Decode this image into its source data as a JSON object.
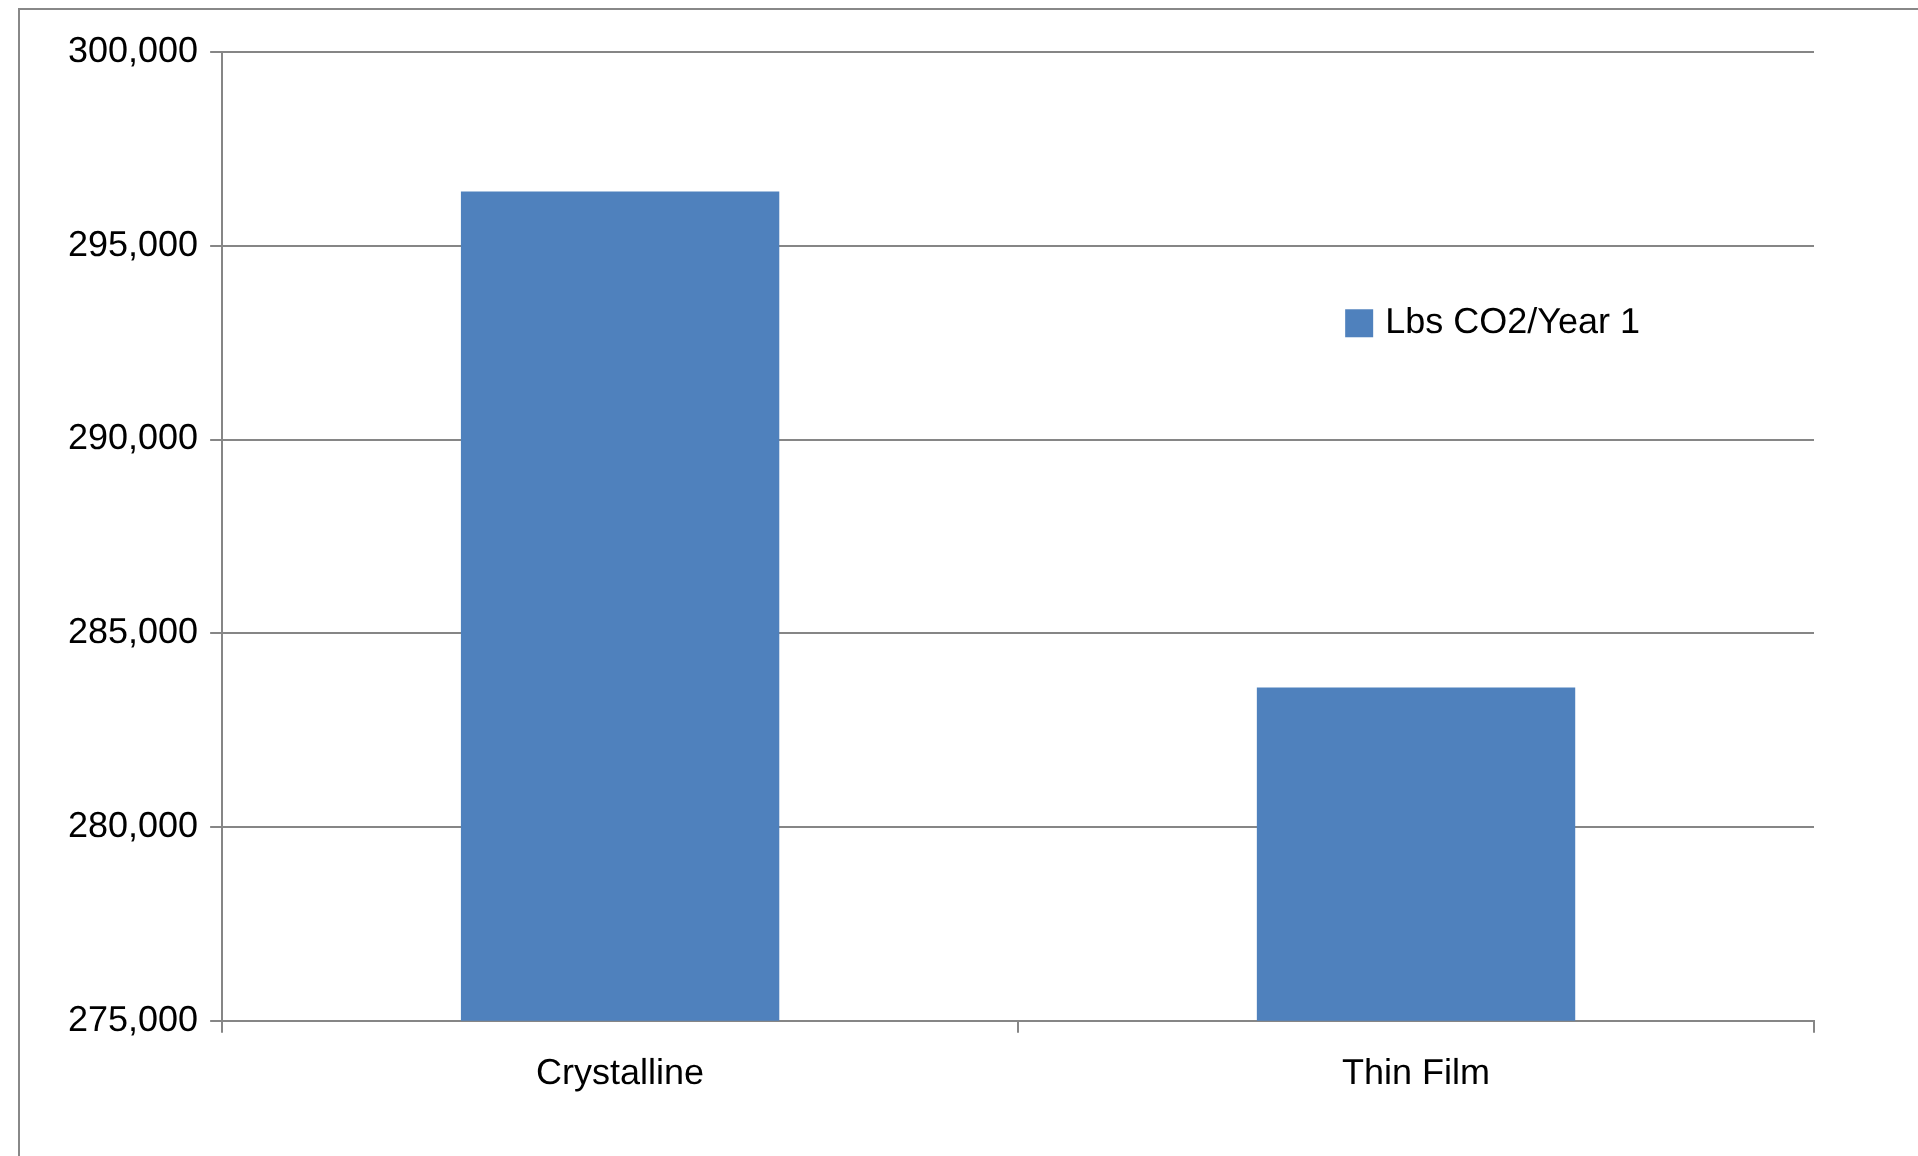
{
  "chart_data": {
    "type": "bar",
    "categories": [
      "Crystalline",
      "Thin Film"
    ],
    "series": [
      {
        "name": "Lbs CO2/Year 1",
        "color": "#4f81bd",
        "values": [
          296400,
          283600
        ]
      }
    ],
    "ylim": [
      275000,
      300000
    ],
    "yticks": [
      {
        "value": 275000,
        "label": "275,000"
      },
      {
        "value": 280000,
        "label": "280,000"
      },
      {
        "value": 285000,
        "label": "285,000"
      },
      {
        "value": 290000,
        "label": "290,000"
      },
      {
        "value": 295000,
        "label": "295,000"
      },
      {
        "value": 300000,
        "label": "300,000"
      }
    ],
    "grid": "y",
    "legend": "right"
  }
}
